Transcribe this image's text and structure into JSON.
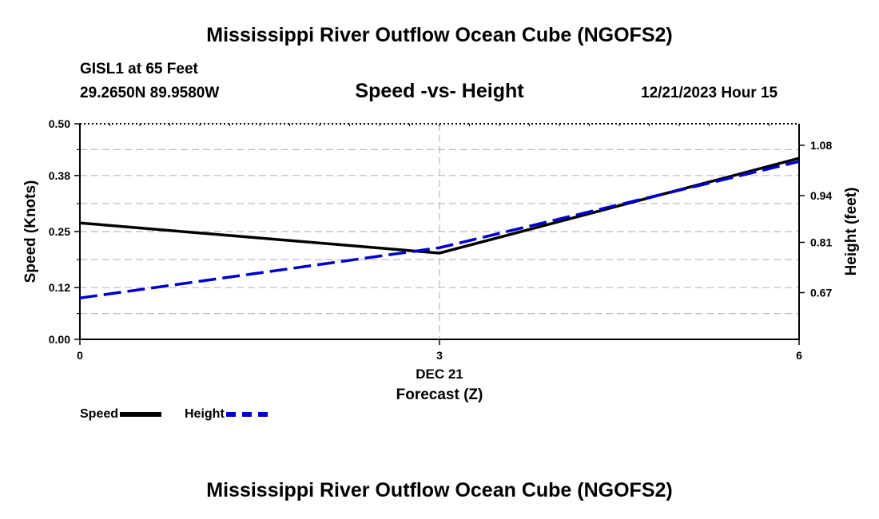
{
  "header": {
    "title": "Mississippi River Outflow Ocean Cube (NGOFS2)",
    "station": "GISL1 at 65 Feet",
    "coords": "29.2650N  89.9580W",
    "plot_title": "Speed -vs- Height",
    "datetime": "12/21/2023 Hour 15"
  },
  "footer": {
    "title": "Mississippi River Outflow Ocean Cube (NGOFS2)"
  },
  "legend": {
    "speed_label": "Speed",
    "height_label": "Height"
  },
  "colors": {
    "speed": "#000000",
    "height": "#0000cc",
    "grid": "#bbbbbb"
  },
  "chart_data": {
    "type": "line",
    "title": "Speed -vs- Height",
    "xlabel": "Forecast (Z)",
    "xdate_label": "DEC 21",
    "ylabel": "Speed (Knots)",
    "y2label": "Height (feet)",
    "x": [
      0,
      3,
      6
    ],
    "xticks": [
      "0",
      "3",
      "6"
    ],
    "xlim": [
      0,
      6
    ],
    "ylim": [
      0,
      0.5
    ],
    "yticks": [
      "0.00",
      "0.12",
      "0.25",
      "0.38",
      "0.50"
    ],
    "y2lim": [
      0.54,
      1.14
    ],
    "y2ticks": [
      "0.67",
      "0.81",
      "0.94",
      "1.08"
    ],
    "series": [
      {
        "name": "Speed",
        "axis": "left",
        "values": [
          0.27,
          0.2,
          0.42
        ]
      },
      {
        "name": "Height",
        "axis": "right",
        "values": [
          0.655,
          0.795,
          1.035
        ]
      }
    ]
  }
}
